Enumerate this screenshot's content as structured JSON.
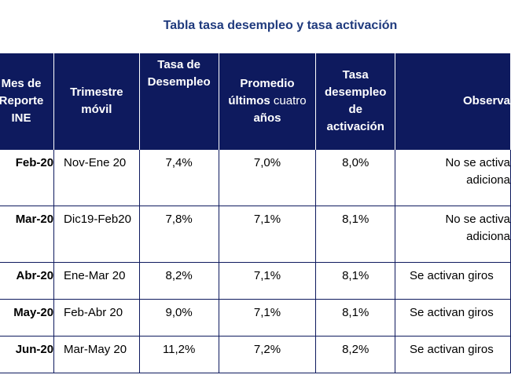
{
  "title": "Tabla tasa desempleo y tasa activación",
  "headers": {
    "mes": [
      "Mes de",
      "Reporte",
      "INE"
    ],
    "trimestre": [
      "Trimestre",
      "móvil"
    ],
    "tasa": [
      "Tasa de",
      "Desempleo"
    ],
    "promedio": {
      "line1": "Promedio",
      "line2a": "últimos",
      "line2b": " cuatro",
      "line3": "años"
    },
    "activacion": [
      "Tasa",
      "desempleo",
      "de",
      "activación"
    ],
    "observaciones": "Observa"
  },
  "rows": [
    {
      "mes": "Feb-20",
      "trimestre": "Nov-Ene 20",
      "tasa": "7,4%",
      "promedio": "7,0%",
      "activacion": "8,0%",
      "obs1": "No se activa",
      "obs2": "adiciona"
    },
    {
      "mes": "Mar-20",
      "trimestre": "Dic19-Feb20",
      "tasa": "7,8%",
      "promedio": "7,1%",
      "activacion": "8,1%",
      "obs1": "No se activa",
      "obs2": "adiciona"
    },
    {
      "mes": "Abr-20",
      "trimestre": "Ene-Mar 20",
      "tasa": "8,2%",
      "promedio": "7,1%",
      "activacion": "8,1%",
      "obs1": "Se activan giros"
    },
    {
      "mes": "May-20",
      "trimestre": "Feb-Abr 20",
      "tasa": "9,0%",
      "promedio": "7,1%",
      "activacion": "8,1%",
      "obs1": "Se activan giros"
    },
    {
      "mes": "Jun-20",
      "trimestre": "Mar-May 20",
      "tasa": "11,2%",
      "promedio": "7,2%",
      "activacion": "8,2%",
      "obs1": "Se activan giros"
    }
  ]
}
